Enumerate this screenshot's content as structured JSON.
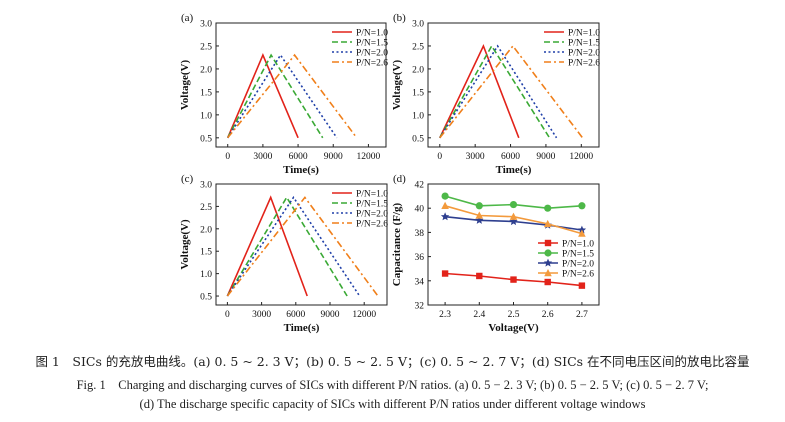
{
  "chart_data": [
    {
      "type": "line",
      "panel_label": "(a)",
      "xlabel": "Time(s)",
      "ylabel": "Voltage(V)",
      "xlim": [
        -1000,
        13500
      ],
      "ylim": [
        0.3,
        3.0
      ],
      "xticks": [
        "0",
        "3000",
        "6000",
        "9000",
        "12000"
      ],
      "yticks": [
        "0.5",
        "1.0",
        "1.5",
        "2.0",
        "2.5",
        "3.0"
      ],
      "legend_position": "top-right",
      "series": [
        {
          "name": "P/N=1.0",
          "color": "#e2231a",
          "dash": "solid",
          "x": [
            0,
            3000,
            6000
          ],
          "y": [
            0.5,
            2.3,
            0.5
          ]
        },
        {
          "name": "P/N=1.5",
          "color": "#3aa935",
          "dash": "dash",
          "x": [
            0,
            3700,
            8100
          ],
          "y": [
            0.5,
            2.3,
            0.5
          ]
        },
        {
          "name": "P/N=2.0",
          "color": "#1f3fa8",
          "dash": "dot",
          "x": [
            0,
            4500,
            9300
          ],
          "y": [
            0.5,
            2.3,
            0.5
          ]
        },
        {
          "name": "P/N=2.6",
          "color": "#f07f1a",
          "dash": "dashdot",
          "x": [
            0,
            5700,
            11000
          ],
          "y": [
            0.5,
            2.3,
            0.5
          ]
        }
      ]
    },
    {
      "type": "line",
      "panel_label": "(b)",
      "xlabel": "Time(s)",
      "ylabel": "Voltage(V)",
      "xlim": [
        -1000,
        13500
      ],
      "ylim": [
        0.3,
        3.0
      ],
      "xticks": [
        "0",
        "3000",
        "6000",
        "9000",
        "12000"
      ],
      "yticks": [
        "0.5",
        "1.0",
        "1.5",
        "2.0",
        "2.5",
        "3.0"
      ],
      "legend_position": "top-right",
      "series": [
        {
          "name": "P/N=1.0",
          "color": "#e2231a",
          "dash": "solid",
          "x": [
            0,
            3700,
            6700
          ],
          "y": [
            0.5,
            2.5,
            0.5
          ]
        },
        {
          "name": "P/N=1.5",
          "color": "#3aa935",
          "dash": "dash",
          "x": [
            0,
            4400,
            9300
          ],
          "y": [
            0.5,
            2.5,
            0.5
          ]
        },
        {
          "name": "P/N=2.0",
          "color": "#1f3fa8",
          "dash": "dot",
          "x": [
            0,
            4900,
            9900
          ],
          "y": [
            0.5,
            2.5,
            0.5
          ]
        },
        {
          "name": "P/N=2.6",
          "color": "#f07f1a",
          "dash": "dashdot",
          "x": [
            0,
            6200,
            12100
          ],
          "y": [
            0.5,
            2.5,
            0.5
          ]
        }
      ]
    },
    {
      "type": "line",
      "panel_label": "(c)",
      "xlabel": "Time(s)",
      "ylabel": "Voltage(V)",
      "xlim": [
        -1000,
        14000
      ],
      "ylim": [
        0.3,
        3.0
      ],
      "xticks": [
        "0",
        "3000",
        "6000",
        "9000",
        "12000"
      ],
      "yticks": [
        "0.5",
        "1.0",
        "1.5",
        "2.0",
        "2.5",
        "3.0"
      ],
      "legend_position": "top-right",
      "series": [
        {
          "name": "P/N=1.0",
          "color": "#e2231a",
          "dash": "solid",
          "x": [
            0,
            3800,
            7000
          ],
          "y": [
            0.5,
            2.7,
            0.5
          ]
        },
        {
          "name": "P/N=1.5",
          "color": "#3aa935",
          "dash": "dash",
          "x": [
            0,
            5200,
            10500
          ],
          "y": [
            0.5,
            2.7,
            0.5
          ]
        },
        {
          "name": "P/N=2.0",
          "color": "#1f3fa8",
          "dash": "dot",
          "x": [
            0,
            5800,
            11600
          ],
          "y": [
            0.5,
            2.7,
            0.5
          ]
        },
        {
          "name": "P/N=2.6",
          "color": "#f07f1a",
          "dash": "dashdot",
          "x": [
            0,
            6800,
            13200
          ],
          "y": [
            0.5,
            2.7,
            0.5
          ]
        }
      ]
    },
    {
      "type": "line",
      "panel_label": "(d)",
      "xlabel": "Voltage(V)",
      "ylabel": "Capacitance (F/g)",
      "xlim": [
        2.25,
        2.75
      ],
      "ylim": [
        32,
        42
      ],
      "xticks": [
        "2.3",
        "2.4",
        "2.5",
        "2.6",
        "2.7"
      ],
      "yticks": [
        "32",
        "34",
        "36",
        "38",
        "40",
        "42"
      ],
      "legend_position": "center-right",
      "categories": [
        2.3,
        2.4,
        2.5,
        2.6,
        2.7
      ],
      "series": [
        {
          "name": "P/N=1.0",
          "color": "#e2231a",
          "marker": "square",
          "values": [
            34.6,
            34.4,
            34.1,
            33.9,
            33.6
          ]
        },
        {
          "name": "P/N=1.5",
          "color": "#4db848",
          "marker": "circle",
          "values": [
            41.0,
            40.2,
            40.3,
            40.0,
            40.2
          ]
        },
        {
          "name": "P/N=2.0",
          "color": "#2e3f8f",
          "marker": "star",
          "values": [
            39.3,
            39.0,
            38.9,
            38.6,
            38.2
          ]
        },
        {
          "name": "P/N=2.6",
          "color": "#f39a3c",
          "marker": "triangle",
          "values": [
            40.2,
            39.4,
            39.3,
            38.7,
            37.9
          ]
        }
      ]
    }
  ],
  "caption": {
    "cn": "图 1　SICs 的充放电曲线。(a) 0. 5 ~ 2. 3 V；(b) 0. 5 ~ 2. 5 V；(c) 0. 5 ~ 2. 7 V；(d) SICs 在不同电压区间的放电比容量",
    "en_line1": "Fig. 1　Charging and discharging curves of SICs with different P/N ratios. (a) 0. 5 − 2. 3 V; (b) 0. 5 − 2. 5 V; (c) 0. 5 − 2. 7 V;",
    "en_line2": "(d) The discharge specific capacity of SICs with different P/N ratios under different voltage windows"
  }
}
